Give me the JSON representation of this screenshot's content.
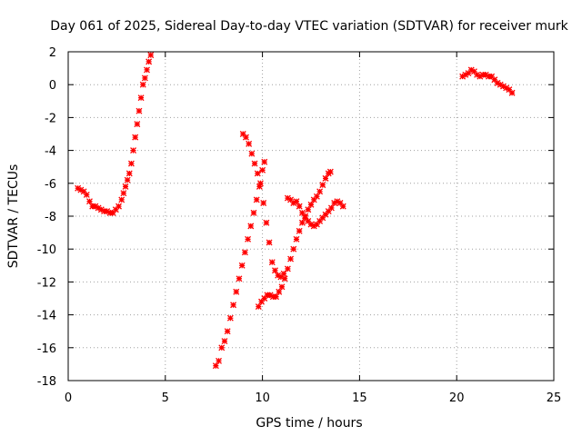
{
  "chart_data": {
    "type": "scatter",
    "title": "Day 061 of 2025, Sidereal Day-to-day VTEC variation (SDTVAR) for receiver murk",
    "xlabel": "GPS time / hours",
    "ylabel": "SDTVAR / TECUs",
    "xlim": [
      0,
      25
    ],
    "ylim": [
      -18,
      2
    ],
    "x_ticks": [
      0,
      5,
      10,
      15,
      20,
      25
    ],
    "y_ticks": [
      2,
      0,
      -2,
      -4,
      -6,
      -8,
      -10,
      -12,
      -14,
      -16,
      -18
    ],
    "grid": true,
    "marker": "plus-cross",
    "color": "#ff0000",
    "series": [
      {
        "x": [
          0.5,
          0.65,
          0.8,
          0.95,
          1.1,
          1.25,
          1.4,
          1.55,
          1.7,
          1.85,
          2.0,
          2.15,
          2.3,
          2.45,
          2.6,
          2.75,
          2.85,
          2.95,
          3.05,
          3.15,
          3.25,
          3.35,
          3.45,
          3.55,
          3.65,
          3.75,
          3.85,
          3.95,
          4.05,
          4.15,
          4.25
        ],
        "y": [
          -6.3,
          -6.4,
          -6.5,
          -6.7,
          -7.1,
          -7.4,
          -7.4,
          -7.5,
          -7.6,
          -7.7,
          -7.7,
          -7.8,
          -7.8,
          -7.6,
          -7.4,
          -7.0,
          -6.6,
          -6.2,
          -5.8,
          -5.4,
          -4.8,
          -4.0,
          -3.2,
          -2.4,
          -1.6,
          -0.8,
          0.0,
          0.4,
          0.9,
          1.4,
          1.8
        ]
      },
      {
        "x": [
          7.6,
          7.75,
          7.9,
          8.05,
          8.2,
          8.35,
          8.5,
          8.65,
          8.8,
          8.95,
          9.1,
          9.25,
          9.4,
          9.55,
          9.7,
          9.85,
          10.0,
          10.1
        ],
        "y": [
          -17.1,
          -16.8,
          -16.0,
          -15.6,
          -15.0,
          -14.2,
          -13.4,
          -12.6,
          -11.8,
          -11.0,
          -10.2,
          -9.4,
          -8.6,
          -7.8,
          -7.0,
          -6.2,
          -5.2,
          -4.7
        ]
      },
      {
        "x": [
          9.0,
          9.15,
          9.3,
          9.45,
          9.6,
          9.75,
          9.9,
          10.05,
          10.2,
          10.35,
          10.5,
          10.65,
          10.8,
          10.95,
          11.1
        ],
        "y": [
          -3.0,
          -3.2,
          -3.6,
          -4.2,
          -4.8,
          -5.4,
          -6.0,
          -7.2,
          -8.4,
          -9.6,
          -10.8,
          -11.3,
          -11.6,
          -11.7,
          -11.5
        ]
      },
      {
        "x": [
          9.8,
          9.95,
          10.1,
          10.25,
          10.4,
          10.55,
          10.7,
          10.85,
          11.0,
          11.15,
          11.3,
          11.45,
          11.6,
          11.75,
          11.9,
          12.05,
          12.2,
          12.35,
          12.5,
          12.65,
          12.8,
          12.95,
          13.1,
          13.25,
          13.4,
          13.5
        ],
        "y": [
          -13.5,
          -13.2,
          -13.0,
          -12.8,
          -12.8,
          -12.9,
          -12.9,
          -12.6,
          -12.3,
          -11.8,
          -11.2,
          -10.6,
          -10.0,
          -9.4,
          -8.9,
          -8.4,
          -8.0,
          -7.6,
          -7.3,
          -7.0,
          -6.8,
          -6.5,
          -6.1,
          -5.7,
          -5.4,
          -5.3
        ]
      },
      {
        "x": [
          11.3,
          11.45,
          11.6,
          11.75,
          11.9,
          12.05,
          12.2,
          12.35,
          12.5,
          12.65,
          12.8,
          12.95,
          13.1,
          13.25,
          13.4,
          13.55,
          13.7,
          13.85,
          14.0,
          14.15
        ],
        "y": [
          -6.9,
          -7.0,
          -7.2,
          -7.1,
          -7.4,
          -7.8,
          -8.1,
          -8.3,
          -8.5,
          -8.6,
          -8.5,
          -8.3,
          -8.1,
          -7.9,
          -7.7,
          -7.5,
          -7.2,
          -7.1,
          -7.2,
          -7.4
        ]
      },
      {
        "x": [
          20.3,
          20.45,
          20.6,
          20.75,
          20.9,
          21.05,
          21.2,
          21.35,
          21.5,
          21.65,
          21.8,
          21.95,
          22.1,
          22.25,
          22.4,
          22.55,
          22.7,
          22.85
        ],
        "y": [
          0.5,
          0.6,
          0.7,
          0.9,
          0.8,
          0.6,
          0.5,
          0.6,
          0.6,
          0.5,
          0.5,
          0.3,
          0.1,
          0.0,
          -0.1,
          -0.2,
          -0.3,
          -0.5
        ]
      }
    ]
  }
}
